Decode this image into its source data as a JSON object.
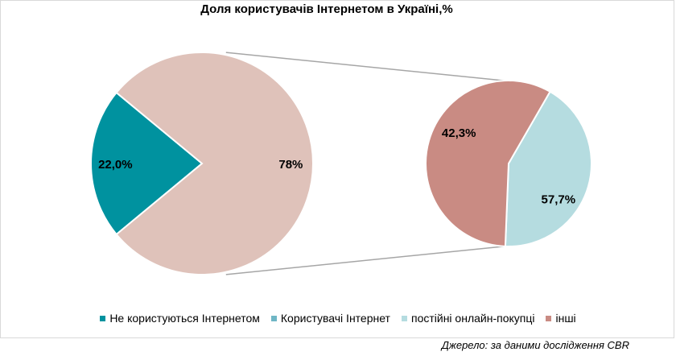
{
  "chart_data": {
    "type": "pie",
    "title": "Доля користувачів Інтернетом в Україні,%",
    "main_pie": {
      "slices": [
        {
          "name": "Не користуються Інтернетом",
          "value": 22.0,
          "label": "22,0%",
          "color": "#00929F"
        },
        {
          "name": "Користувачі Інтернет",
          "value": 78.0,
          "label": "78%",
          "color": "#DFC2BA"
        }
      ]
    },
    "secondary_pie": {
      "slices": [
        {
          "name": "постійні онлайн-покупці",
          "value": 42.3,
          "label": "42,3%",
          "color": "#B5DCE0"
        },
        {
          "name": "інші",
          "value": 57.7,
          "label": "57,7%",
          "color": "#C98B83"
        }
      ]
    },
    "legend": [
      {
        "label": "Не користуються Інтернетом",
        "color": "#00929F"
      },
      {
        "label": "Користувачі Інтернет",
        "color": "#6FB6C5"
      },
      {
        "label": "постійні онлайн-покупці",
        "color": "#B5DCE0"
      },
      {
        "label": "інші",
        "color": "#C98B83"
      }
    ],
    "legend_position": "bottom"
  },
  "source": "Джерело: за даними дослідження CBR"
}
